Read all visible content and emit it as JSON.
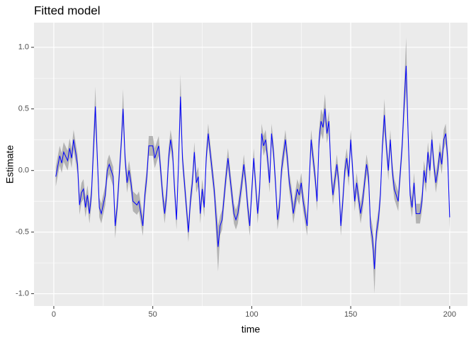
{
  "chart_data": {
    "type": "line",
    "title": "Fitted model",
    "x_label": "time",
    "y_label": "Estimate",
    "xlim": [
      -10,
      209
    ],
    "ylim": [
      -1.1,
      1.2
    ],
    "xticks": [
      0,
      50,
      100,
      150,
      200
    ],
    "yticks": [
      {
        "value": -1,
        "label": "-1.0"
      },
      -0.5,
      {
        "value": 0,
        "label": "0.0"
      },
      0.5,
      {
        "value": 1,
        "label": "1.0"
      }
    ],
    "x_minor_grid": [
      25,
      75,
      125,
      175
    ],
    "y_minor_grid": [
      -0.75,
      -0.25,
      0.25,
      0.75
    ],
    "grid": true,
    "panel_color": "#ebebeb",
    "x": [
      1,
      3,
      4,
      5,
      7,
      8,
      9,
      10,
      12,
      13,
      14,
      15,
      16,
      17,
      18,
      19,
      21,
      22,
      23,
      24,
      26,
      27,
      28,
      30,
      31,
      32,
      34,
      35,
      36,
      37,
      38,
      39,
      40,
      42,
      43,
      44,
      45,
      46,
      47,
      48,
      50,
      51,
      53,
      54,
      55,
      56,
      57,
      58,
      59,
      60,
      61,
      62,
      63,
      64,
      65,
      66,
      67,
      68,
      69,
      70,
      71,
      72,
      73,
      74,
      75,
      76,
      77,
      78,
      79,
      81,
      83,
      84,
      85,
      87,
      88,
      89,
      90,
      91,
      92,
      93,
      95,
      96,
      97,
      98,
      99,
      101,
      103,
      104,
      105,
      106,
      107,
      108,
      109,
      110,
      111,
      112,
      113,
      114,
      115,
      117,
      118,
      119,
      120,
      121,
      123,
      124,
      125,
      126,
      128,
      129,
      130,
      131,
      132,
      133,
      134,
      135,
      136,
      137,
      138,
      139,
      140,
      141,
      143,
      144,
      145,
      146,
      147,
      148,
      149,
      150,
      151,
      152,
      153,
      155,
      156,
      157,
      158,
      159,
      160,
      161,
      162,
      163,
      164,
      165,
      166,
      167,
      168,
      169,
      170,
      171,
      172,
      174,
      176,
      177,
      178,
      179,
      180,
      181,
      182,
      183,
      185,
      186,
      187,
      188,
      189,
      190,
      191,
      192,
      193,
      194,
      195,
      196,
      197,
      198,
      199,
      200
    ],
    "line": {
      "color": "#0000ff",
      "values": [
        -0.05,
        0.12,
        0.06,
        0.15,
        0.08,
        0.18,
        0.1,
        0.25,
        0.05,
        -0.28,
        -0.18,
        -0.15,
        -0.3,
        -0.2,
        -0.35,
        -0.2,
        0.52,
        0.1,
        -0.3,
        -0.35,
        -0.2,
        0.0,
        0.05,
        -0.05,
        -0.45,
        -0.3,
        0.2,
        0.5,
        0.1,
        -0.1,
        0.0,
        -0.1,
        -0.25,
        -0.28,
        -0.25,
        -0.35,
        -0.45,
        -0.2,
        -0.05,
        0.2,
        0.2,
        0.1,
        0.2,
        0.0,
        -0.2,
        -0.35,
        -0.2,
        0.1,
        0.25,
        0.15,
        -0.15,
        -0.4,
        0.05,
        0.6,
        0.1,
        -0.1,
        -0.3,
        -0.5,
        -0.25,
        -0.1,
        0.15,
        -0.1,
        -0.05,
        -0.35,
        -0.15,
        -0.3,
        0.1,
        0.3,
        0.15,
        -0.15,
        -0.62,
        -0.45,
        -0.4,
        -0.05,
        0.1,
        -0.05,
        -0.2,
        -0.35,
        -0.4,
        -0.35,
        -0.1,
        0.05,
        -0.1,
        -0.3,
        -0.45,
        0.1,
        -0.35,
        -0.15,
        0.3,
        0.2,
        0.25,
        0.1,
        -0.1,
        0.3,
        0.15,
        -0.1,
        -0.4,
        -0.3,
        0.0,
        0.25,
        0.1,
        -0.1,
        -0.2,
        -0.35,
        -0.15,
        -0.2,
        -0.1,
        -0.25,
        -0.45,
        -0.1,
        0.25,
        0.1,
        -0.05,
        -0.25,
        0.25,
        0.4,
        0.35,
        0.5,
        0.3,
        0.4,
        0.0,
        -0.2,
        0.05,
        -0.1,
        -0.45,
        -0.25,
        0.0,
        0.1,
        -0.05,
        0.25,
        0.0,
        -0.25,
        -0.1,
        -0.35,
        -0.25,
        -0.1,
        0.05,
        -0.05,
        -0.45,
        -0.55,
        -0.8,
        -0.5,
        -0.4,
        -0.2,
        0.2,
        0.45,
        0.2,
        0.0,
        0.25,
        0.0,
        -0.15,
        -0.25,
        0.2,
        0.55,
        0.85,
        0.3,
        -0.2,
        -0.3,
        -0.1,
        -0.35,
        -0.35,
        -0.25,
        0.0,
        -0.1,
        0.15,
        0.0,
        0.25,
        0.05,
        -0.1,
        0.0,
        0.15,
        0.05,
        0.25,
        0.3,
        0.1,
        -0.38
      ]
    },
    "ribbon": {
      "color": "#b3b3b3",
      "upper": [
        0.03,
        0.2,
        0.14,
        0.23,
        0.16,
        0.26,
        0.18,
        0.33,
        0.13,
        -0.2,
        -0.1,
        -0.07,
        -0.22,
        -0.12,
        -0.27,
        -0.12,
        0.68,
        0.18,
        -0.22,
        -0.27,
        -0.12,
        0.08,
        0.13,
        0.03,
        -0.37,
        -0.22,
        0.28,
        0.66,
        0.18,
        -0.02,
        0.08,
        -0.02,
        -0.17,
        -0.2,
        -0.17,
        -0.27,
        -0.37,
        -0.12,
        0.03,
        0.28,
        0.28,
        0.18,
        0.28,
        0.08,
        -0.12,
        -0.27,
        -0.12,
        0.18,
        0.33,
        0.23,
        -0.07,
        -0.32,
        0.13,
        0.78,
        0.18,
        -0.02,
        -0.22,
        -0.42,
        -0.17,
        -0.02,
        0.23,
        -0.02,
        0.03,
        -0.27,
        -0.07,
        -0.22,
        0.18,
        0.38,
        0.23,
        -0.07,
        -0.45,
        -0.37,
        -0.32,
        0.03,
        0.18,
        0.03,
        -0.12,
        -0.27,
        -0.32,
        -0.27,
        -0.02,
        0.13,
        -0.02,
        -0.22,
        -0.37,
        0.18,
        -0.27,
        -0.07,
        0.38,
        0.28,
        0.33,
        0.18,
        -0.02,
        0.38,
        0.23,
        -0.02,
        -0.32,
        -0.22,
        0.08,
        0.33,
        0.18,
        -0.02,
        -0.12,
        -0.27,
        -0.07,
        -0.12,
        -0.02,
        -0.17,
        -0.37,
        -0.02,
        0.33,
        0.18,
        0.03,
        -0.17,
        0.33,
        0.5,
        0.45,
        0.62,
        0.38,
        0.48,
        0.08,
        -0.12,
        0.13,
        -0.02,
        -0.37,
        -0.17,
        0.08,
        0.18,
        0.03,
        0.33,
        0.08,
        -0.17,
        -0.02,
        -0.27,
        -0.17,
        -0.02,
        0.13,
        0.03,
        -0.37,
        -0.45,
        -0.65,
        -0.42,
        -0.32,
        -0.12,
        0.28,
        0.58,
        0.28,
        0.08,
        0.33,
        0.08,
        -0.07,
        -0.17,
        0.28,
        0.68,
        1.08,
        0.38,
        -0.12,
        -0.22,
        -0.02,
        -0.27,
        -0.27,
        -0.17,
        0.08,
        -0.02,
        0.23,
        0.08,
        0.33,
        0.13,
        -0.02,
        0.08,
        0.23,
        0.13,
        0.33,
        0.38,
        0.18,
        -0.3
      ],
      "lower": [
        -0.13,
        0.04,
        -0.02,
        0.07,
        0,
        0.1,
        0.02,
        0.17,
        -0.03,
        -0.36,
        -0.26,
        -0.23,
        -0.38,
        -0.28,
        -0.43,
        -0.28,
        0.36,
        0.02,
        -0.38,
        -0.43,
        -0.28,
        -0.08,
        -0.03,
        -0.13,
        -0.55,
        -0.38,
        0.12,
        0.38,
        0.02,
        -0.18,
        -0.08,
        -0.18,
        -0.33,
        -0.36,
        -0.33,
        -0.43,
        -0.53,
        -0.28,
        -0.13,
        0.12,
        0.12,
        0.02,
        0.12,
        -0.08,
        -0.28,
        -0.43,
        -0.28,
        0.02,
        0.17,
        0.07,
        -0.23,
        -0.48,
        -0.03,
        0.45,
        0.02,
        -0.18,
        -0.38,
        -0.58,
        -0.33,
        -0.18,
        0.07,
        -0.18,
        -0.13,
        -0.43,
        -0.23,
        -0.38,
        0.02,
        0.22,
        0.07,
        -0.23,
        -0.82,
        -0.53,
        -0.48,
        -0.13,
        0.02,
        -0.13,
        -0.28,
        -0.43,
        -0.48,
        -0.43,
        -0.18,
        -0.03,
        -0.18,
        -0.38,
        -0.53,
        0.02,
        -0.43,
        -0.23,
        0.22,
        0.12,
        0.17,
        0.02,
        -0.18,
        0.22,
        0.07,
        -0.18,
        -0.48,
        -0.38,
        -0.08,
        0.17,
        0.02,
        -0.18,
        -0.28,
        -0.43,
        -0.23,
        -0.28,
        -0.18,
        -0.33,
        -0.53,
        -0.18,
        0.17,
        0.02,
        -0.13,
        -0.33,
        0.17,
        0.3,
        0.25,
        0.4,
        0.22,
        0.32,
        -0.08,
        -0.28,
        -0.03,
        -0.18,
        -0.53,
        -0.33,
        -0.08,
        0.02,
        -0.13,
        0.17,
        -0.08,
        -0.33,
        -0.18,
        -0.43,
        -0.33,
        -0.18,
        -0.03,
        -0.13,
        -0.53,
        -0.65,
        -1.0,
        -0.58,
        -0.48,
        -0.28,
        0.12,
        0.32,
        0.12,
        -0.08,
        0.17,
        -0.08,
        -0.23,
        -0.33,
        0.12,
        0.42,
        0.65,
        0.22,
        -0.28,
        -0.38,
        -0.18,
        -0.43,
        -0.43,
        -0.33,
        -0.08,
        -0.18,
        0.07,
        -0.08,
        0.17,
        -0.03,
        -0.18,
        -0.08,
        0.07,
        -0.03,
        0.17,
        0.22,
        0.02,
        -0.5
      ]
    }
  }
}
